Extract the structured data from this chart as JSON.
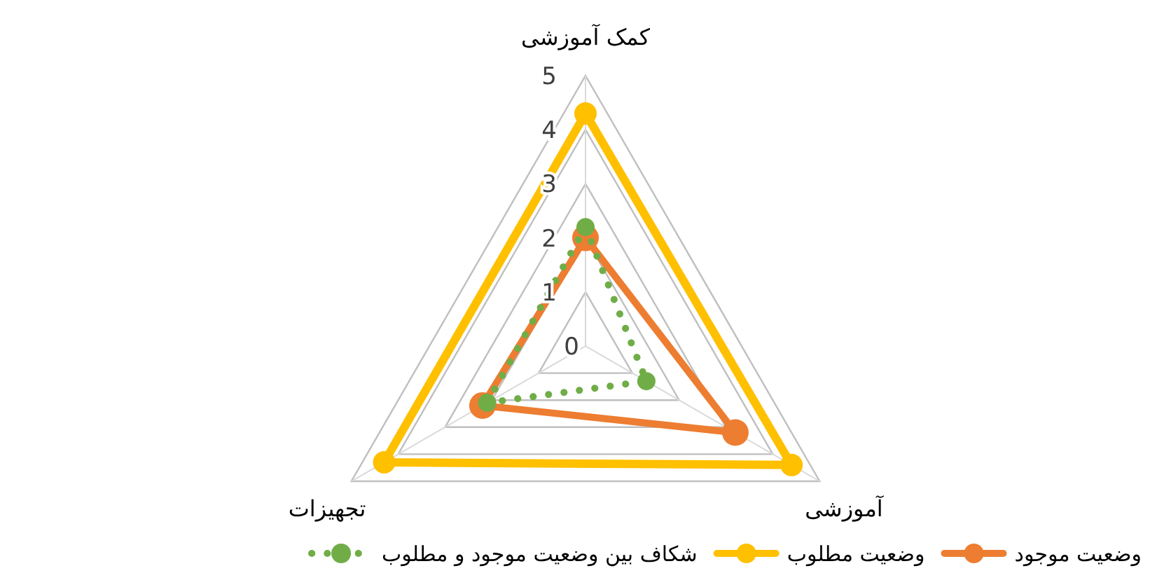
{
  "chart_data": {
    "type": "radar",
    "categories": [
      "کمک آموزشی",
      "آموزشی",
      "تجهیزات"
    ],
    "series": [
      {
        "name": "وضعیت موجود",
        "color": "#ed7d31",
        "values": [
          2.0,
          3.2,
          2.2
        ]
      },
      {
        "name": "وضعیت مطلوب",
        "color": "#ffc000",
        "values": [
          4.3,
          4.4,
          4.3
        ]
      },
      {
        "name": "شکاف بین وضعیت موجود و مطلوب",
        "color": "#70ad47",
        "values": [
          2.2,
          1.3,
          2.1
        ],
        "line_style": "dotted"
      }
    ],
    "ylim": [
      0,
      5
    ],
    "yticks": [
      0,
      1,
      2,
      3,
      4,
      5
    ],
    "grid": true,
    "legend": "bottom",
    "marker": "circle",
    "line_style": "solid"
  }
}
